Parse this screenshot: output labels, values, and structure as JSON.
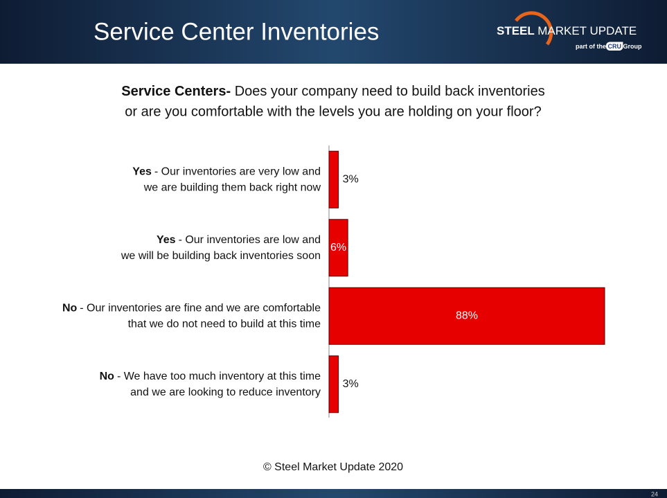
{
  "header": {
    "title": "Service Center Inventories",
    "logo": {
      "brand_bold": "STEEL",
      "brand_rest": "MARKET UPDATE",
      "tagline_pre": "part of the",
      "tagline_badge": "CRU",
      "tagline_post": "Group"
    }
  },
  "question": {
    "bold": "Service Centers-",
    "lines": [
      "Does your company need to build back inventories",
      "or are you comfortable with the levels you are holding on your floor?"
    ]
  },
  "chart_data": {
    "type": "bar",
    "orientation": "horizontal",
    "categories": [
      {
        "bold": "Yes",
        "lines": [
          "- Our inventories are very low and",
          "we are building them back right now"
        ]
      },
      {
        "bold": "Yes",
        "lines": [
          "- Our inventories are low and",
          "we will be building back inventories soon"
        ]
      },
      {
        "bold": "No",
        "lines": [
          "- Our inventories are fine and we are comfortable",
          "that we do not need to build at this time"
        ]
      },
      {
        "bold": "No",
        "lines": [
          "- We have too much inventory at this time",
          "and we are looking to reduce inventory"
        ]
      }
    ],
    "values": [
      3,
      6,
      88,
      3
    ],
    "value_labels": [
      "3%",
      "6%",
      "88%",
      "3%"
    ],
    "color": "#e60000"
  },
  "footer": {
    "copyright": "© Steel Market Update 2020",
    "page": "24"
  }
}
